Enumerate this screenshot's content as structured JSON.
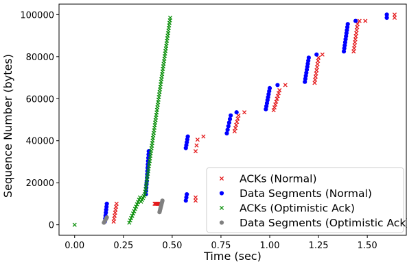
{
  "chart_data": {
    "type": "scatter",
    "xlabel": "Time (sec)",
    "ylabel": "Sequence Number (bytes)",
    "xlim": [
      -0.08,
      1.7
    ],
    "ylim": [
      -5000,
      105000
    ],
    "x_ticks": [
      0.0,
      0.25,
      0.5,
      0.75,
      1.0,
      1.25,
      1.5
    ],
    "x_tick_labels": [
      "0.00",
      "0.25",
      "0.50",
      "0.75",
      "1.00",
      "1.25",
      "1.50"
    ],
    "y_ticks": [
      0,
      20000,
      40000,
      60000,
      80000,
      100000
    ],
    "y_tick_labels": [
      "0",
      "20000",
      "40000",
      "60000",
      "80000",
      "100000"
    ],
    "grid": false,
    "legend_position": "lower-right",
    "series": [
      {
        "name": "ACKs (Normal)",
        "color": "#e41a1c",
        "marker": "x",
        "clusters": [
          {
            "x": [
              0.2,
              0.215
            ],
            "y": [
              1500,
              10000
            ],
            "n": 7
          },
          {
            "x": [
              0.41,
              0.44
            ],
            "y": [
              10000,
              10000
            ],
            "n": 10
          },
          {
            "x": [
              0.62,
              0.62
            ],
            "y": [
              11500,
              13000
            ],
            "n": 2
          },
          {
            "x": [
              0.62,
              0.63
            ],
            "y": [
              35000,
              40500
            ],
            "n": 3
          },
          {
            "x": [
              0.66,
              0.66
            ],
            "y": [
              42000,
              42000
            ],
            "n": 1
          },
          {
            "x": [
              0.82,
              0.84
            ],
            "y": [
              44500,
              52000
            ],
            "n": 6
          },
          {
            "x": [
              0.87,
              0.87
            ],
            "y": [
              53500,
              53500
            ],
            "n": 1
          },
          {
            "x": [
              1.02,
              1.05
            ],
            "y": [
              54500,
              64000
            ],
            "n": 8
          },
          {
            "x": [
              1.08,
              1.08
            ],
            "y": [
              66500,
              66500
            ],
            "n": 1
          },
          {
            "x": [
              1.23,
              1.25
            ],
            "y": [
              67500,
              79500
            ],
            "n": 9
          },
          {
            "x": [
              1.27,
              1.27
            ],
            "y": [
              81000,
              81000
            ],
            "n": 1
          },
          {
            "x": [
              1.43,
              1.45
            ],
            "y": [
              82500,
              95500
            ],
            "n": 10
          },
          {
            "x": [
              1.46,
              1.46
            ],
            "y": [
              97000,
              97000
            ],
            "n": 1
          },
          {
            "x": [
              1.49,
              1.49
            ],
            "y": [
              97000,
              97000
            ],
            "n": 1
          },
          {
            "x": [
              1.64,
              1.64
            ],
            "y": [
              98500,
              100000
            ],
            "n": 2
          }
        ]
      },
      {
        "name": "Data Segments (Normal)",
        "color": "#0000ff",
        "marker": "o",
        "clusters": [
          {
            "x": [
              0.155,
              0.165
            ],
            "y": [
              1500,
              10000
            ],
            "n": 7
          },
          {
            "x": [
              0.365,
              0.38
            ],
            "y": [
              14500,
              35000
            ],
            "n": 14
          },
          {
            "x": [
              0.57,
              0.575
            ],
            "y": [
              11500,
              14500
            ],
            "n": 3
          },
          {
            "x": [
              0.57,
              0.58
            ],
            "y": [
              36500,
              42000
            ],
            "n": 5
          },
          {
            "x": [
              0.78,
              0.8
            ],
            "y": [
              43500,
              52000
            ],
            "n": 6
          },
          {
            "x": [
              0.83,
              0.83
            ],
            "y": [
              53500,
              53500
            ],
            "n": 1
          },
          {
            "x": [
              0.98,
              1.0
            ],
            "y": [
              55000,
              65000
            ],
            "n": 8
          },
          {
            "x": [
              1.04,
              1.04
            ],
            "y": [
              66500,
              66500
            ],
            "n": 1
          },
          {
            "x": [
              1.18,
              1.2
            ],
            "y": [
              68000,
              79500
            ],
            "n": 9
          },
          {
            "x": [
              1.24,
              1.24
            ],
            "y": [
              81000,
              81000
            ],
            "n": 1
          },
          {
            "x": [
              1.38,
              1.4
            ],
            "y": [
              82500,
              95500
            ],
            "n": 10
          },
          {
            "x": [
              1.44,
              1.44
            ],
            "y": [
              97000,
              97000
            ],
            "n": 1
          },
          {
            "x": [
              1.6,
              1.6
            ],
            "y": [
              98500,
              100000
            ],
            "n": 2
          }
        ]
      },
      {
        "name": "ACKs (Optimistic Ack)",
        "color": "#0a8f0a",
        "marker": "x",
        "clusters": [
          {
            "x": [
              0.0,
              0.0
            ],
            "y": [
              0,
              0
            ],
            "n": 1
          },
          {
            "x": [
              0.28,
              0.335
            ],
            "y": [
              1000,
              13000
            ],
            "n": 12
          },
          {
            "x": [
              0.34,
              0.36
            ],
            "y": [
              11000,
              14500
            ],
            "n": 5
          },
          {
            "x": [
              0.36,
              0.49
            ],
            "y": [
              14500,
              98500
            ],
            "n": 70
          }
        ]
      },
      {
        "name": "Data Segments (Optimistic Ack)",
        "color": "#808080",
        "marker": "o",
        "clusters": [
          {
            "x": [
              0.15,
              0.165
            ],
            "y": [
              1000,
              3500
            ],
            "n": 5
          },
          {
            "x": [
              0.435,
              0.45
            ],
            "y": [
              6000,
              11500
            ],
            "n": 9
          }
        ]
      }
    ]
  }
}
